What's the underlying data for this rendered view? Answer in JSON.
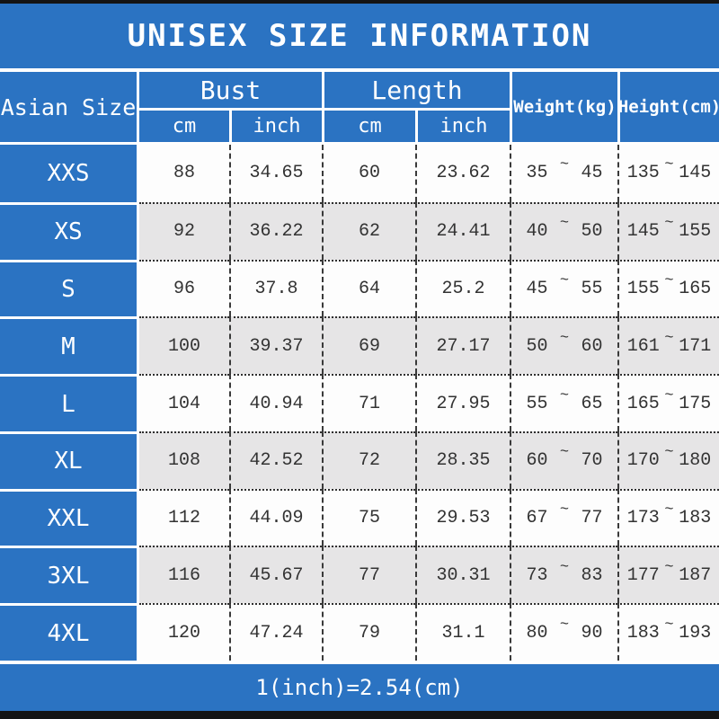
{
  "title": "UNISEX SIZE INFORMATION",
  "footer_note": "1(inch)=2.54(cm)",
  "tilde": "~",
  "header": {
    "asian_size": "Asian Size",
    "bust": "Bust",
    "length": "Length",
    "cm": "cm",
    "inch": "inch",
    "weight": "Weight(kg)",
    "height": "Height(cm)"
  },
  "colors": {
    "blue": "#2b73c2",
    "row_white": "#fdfdfd",
    "row_gray": "#e6e5e6",
    "text_dark": "#333333",
    "border_black": "#141414"
  },
  "chart_data": {
    "type": "table",
    "title": "UNISEX SIZE INFORMATION",
    "columns": [
      "Asian Size",
      "Bust cm",
      "Bust inch",
      "Length cm",
      "Length inch",
      "Weight(kg)",
      "Height(cm)"
    ],
    "rows": [
      {
        "size": "XXS",
        "bust_cm": "88",
        "bust_inch": "34.65",
        "length_cm": "60",
        "length_inch": "23.62",
        "weight_min": "35",
        "weight_max": "45",
        "height_min": "135",
        "height_max": "145"
      },
      {
        "size": "XS",
        "bust_cm": "92",
        "bust_inch": "36.22",
        "length_cm": "62",
        "length_inch": "24.41",
        "weight_min": "40",
        "weight_max": "50",
        "height_min": "145",
        "height_max": "155"
      },
      {
        "size": "S",
        "bust_cm": "96",
        "bust_inch": "37.8",
        "length_cm": "64",
        "length_inch": "25.2",
        "weight_min": "45",
        "weight_max": "55",
        "height_min": "155",
        "height_max": "165"
      },
      {
        "size": "M",
        "bust_cm": "100",
        "bust_inch": "39.37",
        "length_cm": "69",
        "length_inch": "27.17",
        "weight_min": "50",
        "weight_max": "60",
        "height_min": "161",
        "height_max": "171"
      },
      {
        "size": "L",
        "bust_cm": "104",
        "bust_inch": "40.94",
        "length_cm": "71",
        "length_inch": "27.95",
        "weight_min": "55",
        "weight_max": "65",
        "height_min": "165",
        "height_max": "175"
      },
      {
        "size": "XL",
        "bust_cm": "108",
        "bust_inch": "42.52",
        "length_cm": "72",
        "length_inch": "28.35",
        "weight_min": "60",
        "weight_max": "70",
        "height_min": "170",
        "height_max": "180"
      },
      {
        "size": "XXL",
        "bust_cm": "112",
        "bust_inch": "44.09",
        "length_cm": "75",
        "length_inch": "29.53",
        "weight_min": "67",
        "weight_max": "77",
        "height_min": "173",
        "height_max": "183"
      },
      {
        "size": "3XL",
        "bust_cm": "116",
        "bust_inch": "45.67",
        "length_cm": "77",
        "length_inch": "30.31",
        "weight_min": "73",
        "weight_max": "83",
        "height_min": "177",
        "height_max": "187"
      },
      {
        "size": "4XL",
        "bust_cm": "120",
        "bust_inch": "47.24",
        "length_cm": "79",
        "length_inch": "31.1",
        "weight_min": "80",
        "weight_max": "90",
        "height_min": "183",
        "height_max": "193"
      }
    ]
  }
}
